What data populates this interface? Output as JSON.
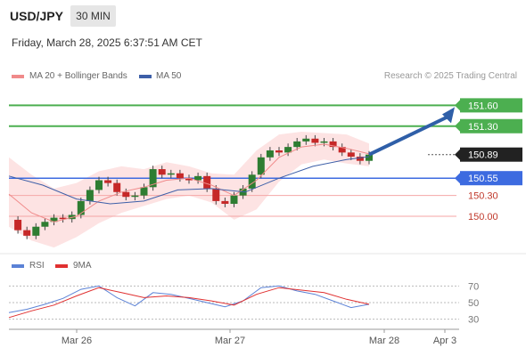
{
  "header": {
    "symbol": "USD/JPY",
    "timeframe": "30 MIN",
    "datetime": "Friday, March 28, 2025 6:37:51 AM CET"
  },
  "legend": {
    "ma20": "MA 20 + Bollinger Bands",
    "ma50": "MA 50",
    "credit": "Research © 2025 Trading Central"
  },
  "rsi_legend": {
    "rsi": "RSI",
    "ma": "9MA"
  },
  "colors": {
    "up": "#e34848",
    "candle_up": "#2e7d32",
    "candle_down": "#c62828",
    "band_fill": "#fde3e3",
    "ma20": "#f08a8a",
    "ma50": "#3d5fa8",
    "target": "#4caf50",
    "pivot": "#3d6be0",
    "support": "#f4a6a6",
    "rsi": "#5b82d6",
    "rsi_ma": "#e03030",
    "arrow": "#2f5fa8"
  },
  "chart_data": {
    "type": "candlestick",
    "series": [
      {
        "name": "USD/JPY",
        "role": "price"
      },
      {
        "name": "MA 20 + Bollinger Bands"
      },
      {
        "name": "MA 50"
      }
    ],
    "ylim": [
      149.5,
      151.9
    ],
    "levels": [
      {
        "value": 151.6,
        "label": "151.60",
        "kind": "target"
      },
      {
        "value": 151.3,
        "label": "151.30",
        "kind": "target"
      },
      {
        "value": 150.89,
        "label": "150.89",
        "kind": "last"
      },
      {
        "value": 150.55,
        "label": "150.55",
        "kind": "pivot"
      },
      {
        "value": 150.3,
        "label": "150.30",
        "kind": "support"
      },
      {
        "value": 150.0,
        "label": "150.00",
        "kind": "support"
      }
    ],
    "price_path": [
      {
        "x": 0,
        "y": 149.95
      },
      {
        "x": 4,
        "y": 149.8
      },
      {
        "x": 8,
        "y": 149.72
      },
      {
        "x": 12,
        "y": 149.85
      },
      {
        "x": 16,
        "y": 149.92
      },
      {
        "x": 20,
        "y": 149.98
      },
      {
        "x": 24,
        "y": 149.96
      },
      {
        "x": 28,
        "y": 150.02
      },
      {
        "x": 32,
        "y": 150.22
      },
      {
        "x": 36,
        "y": 150.38
      },
      {
        "x": 40,
        "y": 150.52
      },
      {
        "x": 44,
        "y": 150.48
      },
      {
        "x": 48,
        "y": 150.35
      },
      {
        "x": 52,
        "y": 150.28
      },
      {
        "x": 56,
        "y": 150.3
      },
      {
        "x": 60,
        "y": 150.42
      },
      {
        "x": 64,
        "y": 150.68
      },
      {
        "x": 68,
        "y": 150.6
      },
      {
        "x": 72,
        "y": 150.62
      },
      {
        "x": 76,
        "y": 150.55
      },
      {
        "x": 80,
        "y": 150.52
      },
      {
        "x": 84,
        "y": 150.58
      },
      {
        "x": 88,
        "y": 150.4
      },
      {
        "x": 92,
        "y": 150.22
      },
      {
        "x": 96,
        "y": 150.18
      },
      {
        "x": 100,
        "y": 150.3
      },
      {
        "x": 104,
        "y": 150.4
      },
      {
        "x": 108,
        "y": 150.6
      },
      {
        "x": 112,
        "y": 150.85
      },
      {
        "x": 116,
        "y": 150.95
      },
      {
        "x": 120,
        "y": 150.92
      },
      {
        "x": 124,
        "y": 151.0
      },
      {
        "x": 128,
        "y": 151.08
      },
      {
        "x": 132,
        "y": 151.12
      },
      {
        "x": 136,
        "y": 151.06
      },
      {
        "x": 140,
        "y": 151.08
      },
      {
        "x": 144,
        "y": 151.0
      },
      {
        "x": 148,
        "y": 150.92
      },
      {
        "x": 152,
        "y": 150.86
      },
      {
        "x": 156,
        "y": 150.8
      },
      {
        "x": 160,
        "y": 150.89
      }
    ],
    "ma20_path": [
      {
        "x": 0,
        "y": 150.32
      },
      {
        "x": 10,
        "y": 150.05
      },
      {
        "x": 20,
        "y": 149.92
      },
      {
        "x": 30,
        "y": 150.0
      },
      {
        "x": 40,
        "y": 150.22
      },
      {
        "x": 50,
        "y": 150.35
      },
      {
        "x": 60,
        "y": 150.42
      },
      {
        "x": 70,
        "y": 150.52
      },
      {
        "x": 80,
        "y": 150.55
      },
      {
        "x": 90,
        "y": 150.45
      },
      {
        "x": 100,
        "y": 150.3
      },
      {
        "x": 110,
        "y": 150.52
      },
      {
        "x": 120,
        "y": 150.85
      },
      {
        "x": 130,
        "y": 151.0
      },
      {
        "x": 140,
        "y": 151.04
      },
      {
        "x": 150,
        "y": 150.98
      },
      {
        "x": 160,
        "y": 150.9
      }
    ],
    "ma50_path": [
      {
        "x": 0,
        "y": 150.58
      },
      {
        "x": 15,
        "y": 150.45
      },
      {
        "x": 30,
        "y": 150.25
      },
      {
        "x": 45,
        "y": 150.18
      },
      {
        "x": 60,
        "y": 150.22
      },
      {
        "x": 75,
        "y": 150.38
      },
      {
        "x": 90,
        "y": 150.4
      },
      {
        "x": 105,
        "y": 150.35
      },
      {
        "x": 120,
        "y": 150.55
      },
      {
        "x": 135,
        "y": 150.72
      },
      {
        "x": 150,
        "y": 150.82
      },
      {
        "x": 160,
        "y": 150.86
      }
    ],
    "bands_upper": [
      {
        "x": 0,
        "y": 150.85
      },
      {
        "x": 10,
        "y": 150.6
      },
      {
        "x": 20,
        "y": 150.4
      },
      {
        "x": 30,
        "y": 150.48
      },
      {
        "x": 40,
        "y": 150.65
      },
      {
        "x": 50,
        "y": 150.72
      },
      {
        "x": 60,
        "y": 150.68
      },
      {
        "x": 70,
        "y": 150.78
      },
      {
        "x": 80,
        "y": 150.72
      },
      {
        "x": 90,
        "y": 150.62
      },
      {
        "x": 100,
        "y": 150.6
      },
      {
        "x": 110,
        "y": 150.95
      },
      {
        "x": 120,
        "y": 151.18
      },
      {
        "x": 130,
        "y": 151.22
      },
      {
        "x": 140,
        "y": 151.2
      },
      {
        "x": 150,
        "y": 151.18
      },
      {
        "x": 160,
        "y": 151.05
      }
    ],
    "bands_lower": [
      {
        "x": 0,
        "y": 149.85
      },
      {
        "x": 10,
        "y": 149.65
      },
      {
        "x": 20,
        "y": 149.55
      },
      {
        "x": 30,
        "y": 149.7
      },
      {
        "x": 40,
        "y": 149.9
      },
      {
        "x": 50,
        "y": 150.05
      },
      {
        "x": 60,
        "y": 150.15
      },
      {
        "x": 70,
        "y": 150.25
      },
      {
        "x": 80,
        "y": 150.3
      },
      {
        "x": 90,
        "y": 150.2
      },
      {
        "x": 100,
        "y": 149.95
      },
      {
        "x": 110,
        "y": 150.1
      },
      {
        "x": 120,
        "y": 150.5
      },
      {
        "x": 130,
        "y": 150.75
      },
      {
        "x": 140,
        "y": 150.82
      },
      {
        "x": 150,
        "y": 150.76
      },
      {
        "x": 160,
        "y": 150.72
      }
    ],
    "forecast_target": 151.6,
    "x_tick_labels": [
      "Mar 26",
      "Mar 27",
      "Mar 28",
      "Apr 3"
    ],
    "rsi": {
      "levels": [
        70,
        50,
        30
      ],
      "ylim": [
        20,
        80
      ],
      "rsi_path": [
        {
          "x": 0,
          "y": 38
        },
        {
          "x": 8,
          "y": 42
        },
        {
          "x": 16,
          "y": 48
        },
        {
          "x": 24,
          "y": 55
        },
        {
          "x": 32,
          "y": 66
        },
        {
          "x": 40,
          "y": 70
        },
        {
          "x": 48,
          "y": 56
        },
        {
          "x": 56,
          "y": 46
        },
        {
          "x": 64,
          "y": 62
        },
        {
          "x": 72,
          "y": 60
        },
        {
          "x": 80,
          "y": 55
        },
        {
          "x": 88,
          "y": 50
        },
        {
          "x": 96,
          "y": 45
        },
        {
          "x": 104,
          "y": 52
        },
        {
          "x": 112,
          "y": 68
        },
        {
          "x": 120,
          "y": 70
        },
        {
          "x": 128,
          "y": 64
        },
        {
          "x": 136,
          "y": 60
        },
        {
          "x": 144,
          "y": 52
        },
        {
          "x": 152,
          "y": 44
        },
        {
          "x": 160,
          "y": 48
        }
      ],
      "ma_path": [
        {
          "x": 0,
          "y": 32
        },
        {
          "x": 10,
          "y": 40
        },
        {
          "x": 20,
          "y": 47
        },
        {
          "x": 30,
          "y": 58
        },
        {
          "x": 40,
          "y": 68
        },
        {
          "x": 50,
          "y": 62
        },
        {
          "x": 60,
          "y": 56
        },
        {
          "x": 70,
          "y": 58
        },
        {
          "x": 80,
          "y": 56
        },
        {
          "x": 90,
          "y": 52
        },
        {
          "x": 100,
          "y": 47
        },
        {
          "x": 110,
          "y": 60
        },
        {
          "x": 120,
          "y": 68
        },
        {
          "x": 130,
          "y": 65
        },
        {
          "x": 140,
          "y": 62
        },
        {
          "x": 150,
          "y": 54
        },
        {
          "x": 160,
          "y": 48
        }
      ]
    }
  }
}
